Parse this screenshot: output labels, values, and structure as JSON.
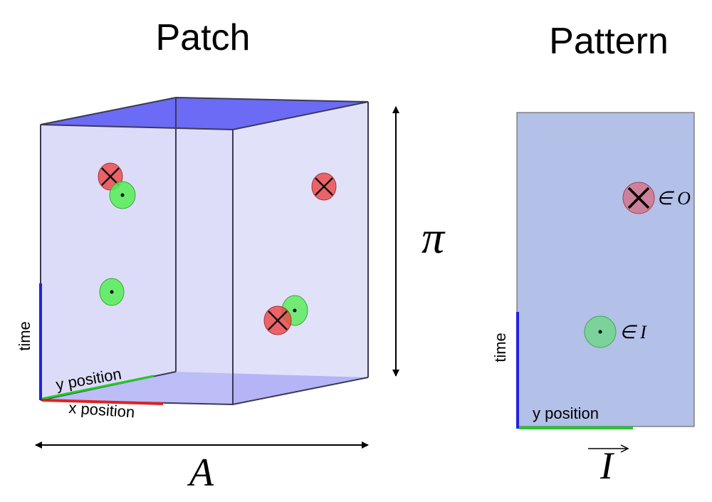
{
  "titles": {
    "patch": "Patch",
    "pattern": "Pattern"
  },
  "patch": {
    "axis_time": "time",
    "axis_y": "y position",
    "axis_x": "x position",
    "symbol_height": "π",
    "symbol_width": "A"
  },
  "pattern": {
    "axis_time": "time",
    "axis_y": "y position",
    "label_output": "∈ O",
    "label_input": "∈ I",
    "symbol_vector": "I"
  },
  "colors": {
    "box_face": "#dcdcf8",
    "box_lid": "#6b6bf5",
    "box_edge": "#3a3a55",
    "pattern_fill": "#b3c0e8",
    "event_red": "#ee4444",
    "event_green": "#55ee55",
    "axis_time": "#2222dd",
    "axis_y": "#22cc22",
    "axis_x": "#dd2222"
  }
}
